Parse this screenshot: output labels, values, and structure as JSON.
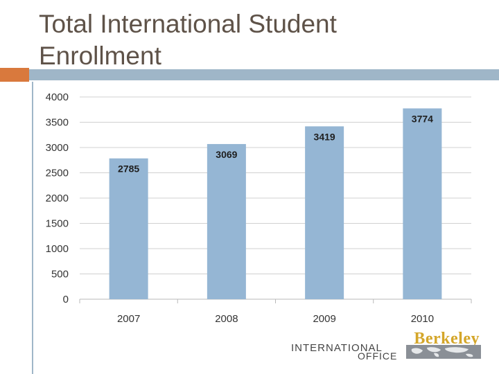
{
  "slide": {
    "title": "Total International Student Enrollment"
  },
  "colors": {
    "bar": "#95b6d4",
    "title": "#5e5248",
    "accent": "#d9793d",
    "rule": "#9fb6c8",
    "grid": "#d0d0d0"
  },
  "chart_data": {
    "type": "bar",
    "title": "",
    "xlabel": "",
    "ylabel": "",
    "categories": [
      "2007",
      "2008",
      "2009",
      "2010"
    ],
    "values": [
      2785,
      3069,
      3419,
      3774
    ],
    "data_labels": [
      "2785",
      "3069",
      "3419",
      "3774"
    ],
    "ylim": [
      0,
      4000
    ],
    "yticks": [
      0,
      500,
      1000,
      1500,
      2000,
      2500,
      3000,
      3500,
      4000
    ],
    "grid": true,
    "legend": "none"
  },
  "logo": {
    "brand": "Berkeley",
    "line1": "INTERNATIONAL",
    "line2": "OFFICE",
    "icon": "world-map-icon"
  }
}
